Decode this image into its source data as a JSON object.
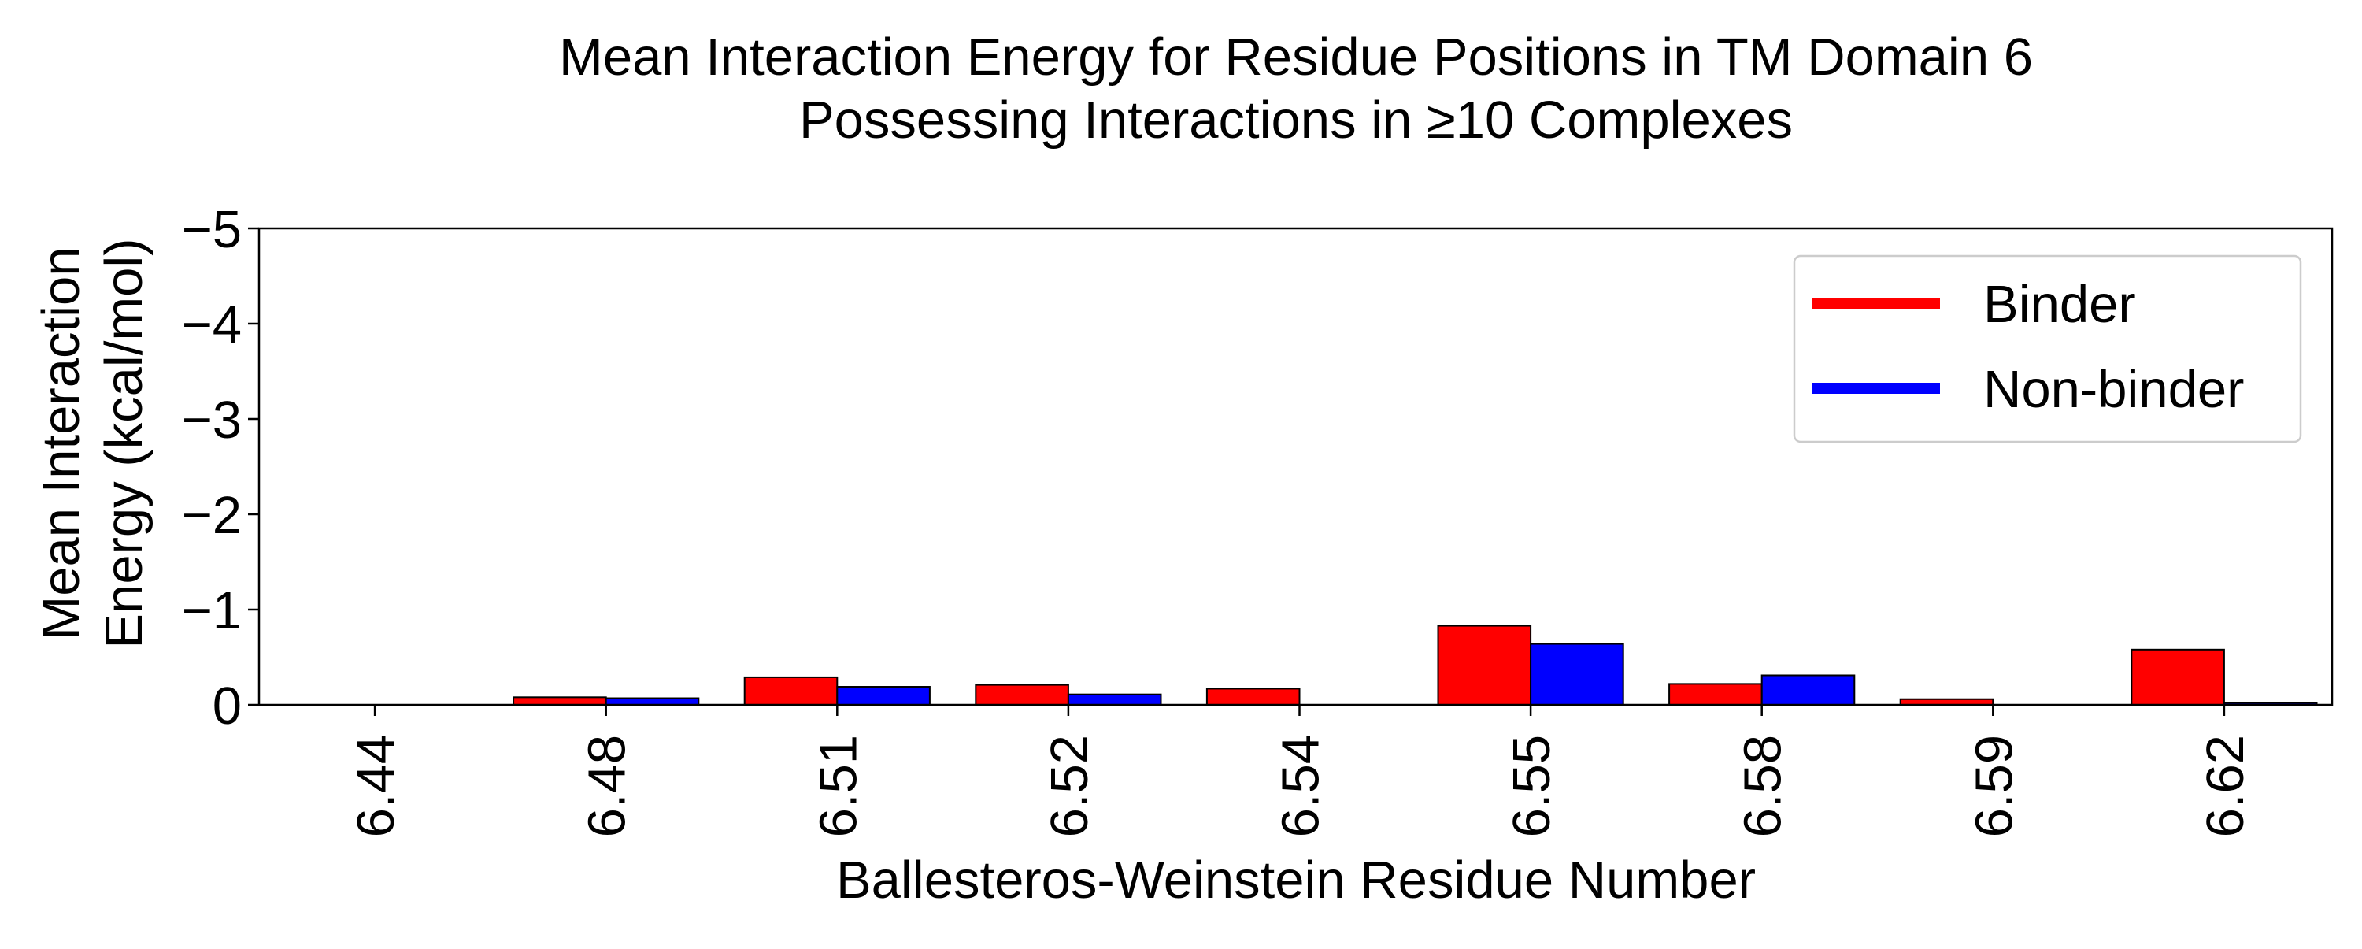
{
  "chart_data": {
    "type": "bar",
    "title": [
      "Mean Interaction Energy for Residue Positions in TM Domain 6",
      "Possessing Interactions in ≥10 Complexes"
    ],
    "xlabel": "Ballesteros-Weinstein Residue Number",
    "ylabel": [
      "Mean Interaction",
      "Energy (kcal/mol)"
    ],
    "categories": [
      "6.44",
      "6.48",
      "6.51",
      "6.52",
      "6.54",
      "6.55",
      "6.58",
      "6.59",
      "6.62"
    ],
    "ylim": [
      0,
      -5
    ],
    "y_inverted": true,
    "yticks": [
      0,
      -1,
      -2,
      -3,
      -4,
      -5
    ],
    "ytick_labels": [
      "0",
      "−1",
      "−2",
      "−3",
      "−4",
      "−5"
    ],
    "grid": false,
    "legend_position": "top-right",
    "series": [
      {
        "name": "Binder",
        "color": "#ff0000",
        "values": [
          0.0,
          -0.08,
          -0.29,
          -0.21,
          -0.17,
          -0.83,
          -0.22,
          -0.06,
          -0.58
        ]
      },
      {
        "name": "Non-binder",
        "color": "#0000ff",
        "values": [
          0.0,
          -0.07,
          -0.19,
          -0.11,
          0.0,
          -0.64,
          -0.31,
          0.0,
          -0.02
        ]
      }
    ]
  }
}
